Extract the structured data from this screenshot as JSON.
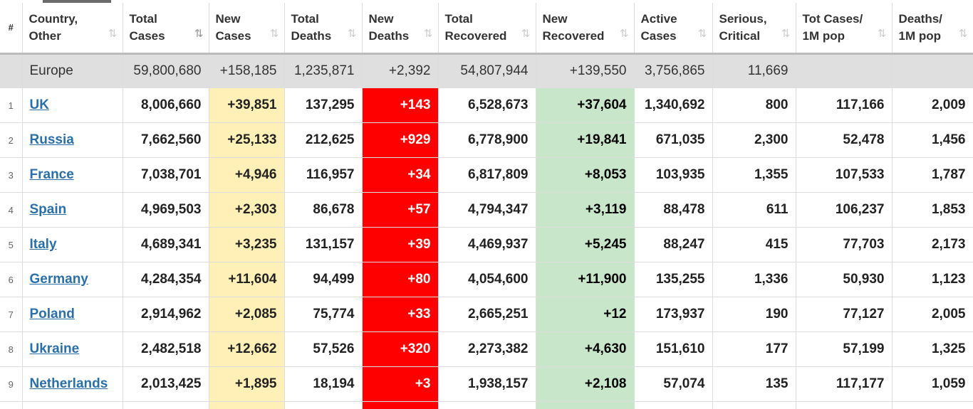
{
  "headers": [
    {
      "key": "index",
      "label": "#"
    },
    {
      "key": "country",
      "label": "Country,\nOther",
      "line1": "Country,",
      "line2": "Other"
    },
    {
      "key": "total_cases",
      "line1": "Total",
      "line2": "Cases"
    },
    {
      "key": "new_cases",
      "line1": "New",
      "line2": "Cases"
    },
    {
      "key": "total_deaths",
      "line1": "Total",
      "line2": "Deaths"
    },
    {
      "key": "new_deaths",
      "line1": "New",
      "line2": "Deaths"
    },
    {
      "key": "total_recovered",
      "line1": "Total",
      "line2": "Recovered"
    },
    {
      "key": "new_recovered",
      "line1": "New",
      "line2": "Recovered"
    },
    {
      "key": "active_cases",
      "line1": "Active",
      "line2": "Cases"
    },
    {
      "key": "serious_critical",
      "line1": "Serious,",
      "line2": "Critical"
    },
    {
      "key": "tot_cases_1m",
      "line1": "Tot Cases/",
      "line2": "1M pop"
    },
    {
      "key": "deaths_1m",
      "line1": "Deaths/",
      "line2": "1M pop"
    }
  ],
  "icons": {
    "sort": "sort-icon",
    "sort_active": "sort-descending-icon",
    "sort_glyph": "⇅"
  },
  "colors": {
    "new_cases_bg": "#fff0b8",
    "new_deaths_bg": "#ff0000",
    "new_recovered_bg": "#c8e6c9",
    "link": "#2b6fa8",
    "continent_bg": "#dfdfdf"
  },
  "continent": {
    "name": "Europe",
    "total_cases": "59,800,680",
    "new_cases": "+158,185",
    "total_deaths": "1,235,871",
    "new_deaths": "+2,392",
    "total_recovered": "54,807,944",
    "new_recovered": "+139,550",
    "active_cases": "3,756,865",
    "serious_critical": "11,669",
    "tot_cases_1m": "",
    "deaths_1m": ""
  },
  "rows": [
    {
      "index": "1",
      "country": "UK",
      "total_cases": "8,006,660",
      "new_cases": "+39,851",
      "total_deaths": "137,295",
      "new_deaths": "+143",
      "total_recovered": "6,528,673",
      "new_recovered": "+37,604",
      "active_cases": "1,340,692",
      "serious_critical": "800",
      "tot_cases_1m": "117,166",
      "deaths_1m": "2,009"
    },
    {
      "index": "2",
      "country": "Russia",
      "total_cases": "7,662,560",
      "new_cases": "+25,133",
      "total_deaths": "212,625",
      "new_deaths": "+929",
      "total_recovered": "6,778,900",
      "new_recovered": "+19,841",
      "active_cases": "671,035",
      "serious_critical": "2,300",
      "tot_cases_1m": "52,478",
      "deaths_1m": "1,456"
    },
    {
      "index": "3",
      "country": "France",
      "total_cases": "7,038,701",
      "new_cases": "+4,946",
      "total_deaths": "116,957",
      "new_deaths": "+34",
      "total_recovered": "6,817,809",
      "new_recovered": "+8,053",
      "active_cases": "103,935",
      "serious_critical": "1,355",
      "tot_cases_1m": "107,533",
      "deaths_1m": "1,787"
    },
    {
      "index": "4",
      "country": "Spain",
      "total_cases": "4,969,503",
      "new_cases": "+2,303",
      "total_deaths": "86,678",
      "new_deaths": "+57",
      "total_recovered": "4,794,347",
      "new_recovered": "+3,119",
      "active_cases": "88,478",
      "serious_critical": "611",
      "tot_cases_1m": "106,237",
      "deaths_1m": "1,853"
    },
    {
      "index": "5",
      "country": "Italy",
      "total_cases": "4,689,341",
      "new_cases": "+3,235",
      "total_deaths": "131,157",
      "new_deaths": "+39",
      "total_recovered": "4,469,937",
      "new_recovered": "+5,245",
      "active_cases": "88,247",
      "serious_critical": "415",
      "tot_cases_1m": "77,703",
      "deaths_1m": "2,173"
    },
    {
      "index": "6",
      "country": "Germany",
      "total_cases": "4,284,354",
      "new_cases": "+11,604",
      "total_deaths": "94,499",
      "new_deaths": "+80",
      "total_recovered": "4,054,600",
      "new_recovered": "+11,900",
      "active_cases": "135,255",
      "serious_critical": "1,336",
      "tot_cases_1m": "50,930",
      "deaths_1m": "1,123"
    },
    {
      "index": "7",
      "country": "Poland",
      "total_cases": "2,914,962",
      "new_cases": "+2,085",
      "total_deaths": "75,774",
      "new_deaths": "+33",
      "total_recovered": "2,665,251",
      "new_recovered": "+12",
      "active_cases": "173,937",
      "serious_critical": "190",
      "tot_cases_1m": "77,127",
      "deaths_1m": "2,005"
    },
    {
      "index": "8",
      "country": "Ukraine",
      "total_cases": "2,482,518",
      "new_cases": "+12,662",
      "total_deaths": "57,526",
      "new_deaths": "+320",
      "total_recovered": "2,273,382",
      "new_recovered": "+4,630",
      "active_cases": "151,610",
      "serious_critical": "177",
      "tot_cases_1m": "57,199",
      "deaths_1m": "1,325"
    },
    {
      "index": "9",
      "country": "Netherlands",
      "total_cases": "2,013,425",
      "new_cases": "+1,895",
      "total_deaths": "18,194",
      "new_deaths": "+3",
      "total_recovered": "1,938,157",
      "new_recovered": "+2,108",
      "active_cases": "57,074",
      "serious_critical": "135",
      "tot_cases_1m": "117,177",
      "deaths_1m": "1,059"
    }
  ]
}
